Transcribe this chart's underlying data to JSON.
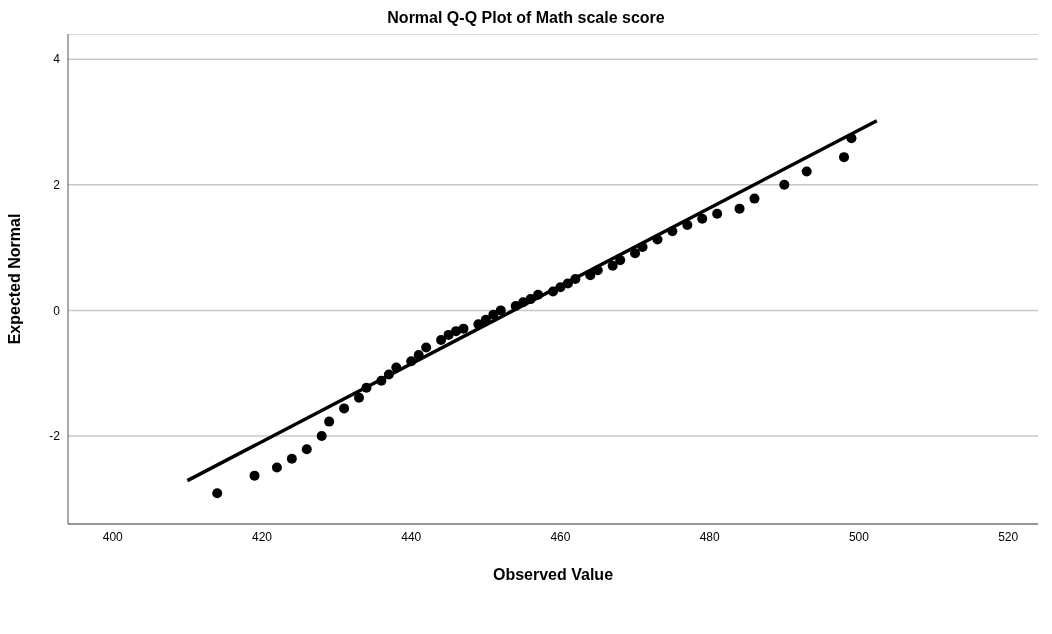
{
  "chart_data": {
    "type": "scatter",
    "title": "Normal Q-Q Plot of Math scale score",
    "xlabel": "Observed Value",
    "ylabel": "Expected Normal",
    "series": [
      {
        "color": "#000000",
        "x": [
          414,
          419,
          422,
          424,
          426,
          428,
          429,
          431,
          433,
          434,
          436,
          437,
          438,
          440,
          441,
          442,
          444,
          445,
          446,
          447,
          449,
          450,
          451,
          452,
          454,
          455,
          456,
          457,
          459,
          460,
          461,
          462,
          464,
          465,
          467,
          468,
          470,
          471,
          473,
          475,
          477,
          479,
          481,
          484,
          486,
          490,
          493,
          498,
          499
        ],
        "values": [
          -2.91,
          -2.63,
          -2.5,
          -2.36,
          -2.21,
          -2.0,
          -1.77,
          -1.56,
          -1.39,
          -1.23,
          -1.12,
          -1.02,
          -0.91,
          -0.81,
          -0.71,
          -0.59,
          -0.47,
          -0.39,
          -0.33,
          -0.29,
          -0.22,
          -0.15,
          -0.07,
          0.0,
          0.07,
          0.13,
          0.18,
          0.25,
          0.3,
          0.37,
          0.43,
          0.5,
          0.56,
          0.64,
          0.71,
          0.8,
          0.91,
          1.01,
          1.13,
          1.26,
          1.36,
          1.46,
          1.54,
          1.62,
          1.78,
          2.0,
          2.21,
          2.44,
          2.74
        ]
      },
      {
        "type": "line",
        "color": "#000000",
        "marker": "none",
        "x": [
          410,
          502.4
        ],
        "values": [
          -2.71,
          3.02
        ]
      }
    ],
    "xlim": [
      394,
      524
    ],
    "xticks": [
      400,
      420,
      440,
      460,
      480,
      500,
      520
    ],
    "ylim": [
      -3.4,
      4.4
    ],
    "yticks": [
      -2,
      0,
      2,
      4
    ],
    "grid": "y",
    "marker": "circle",
    "line_style": "solid"
  }
}
